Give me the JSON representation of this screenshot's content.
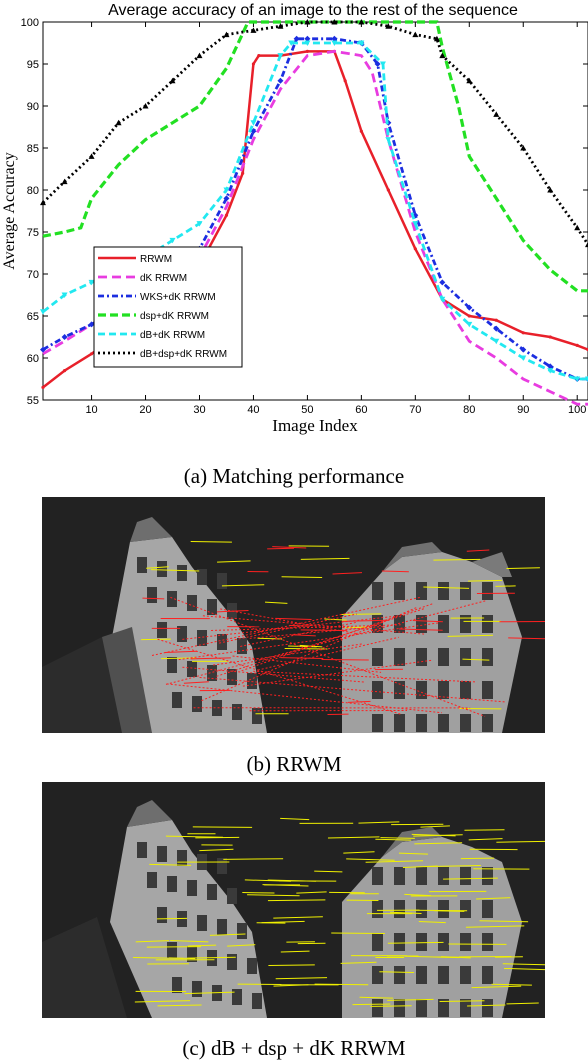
{
  "chart_data": {
    "type": "line",
    "title": "Average accuracy of an image to the rest of the sequence",
    "xlabel": "Image Index",
    "ylabel": "Average Accuracy",
    "xlim": [
      1,
      102
    ],
    "ylim": [
      55,
      100
    ],
    "xticks": [
      10,
      20,
      30,
      40,
      50,
      60,
      70,
      80,
      90,
      100
    ],
    "yticks": [
      55,
      60,
      65,
      70,
      75,
      80,
      85,
      90,
      95,
      100
    ],
    "legend_position": "lower-left",
    "series": [
      {
        "name": "RRWM",
        "color": "#e8202a",
        "x": [
          1,
          5,
          10,
          15,
          20,
          25,
          30,
          35,
          38,
          40,
          41,
          45,
          50,
          55,
          57,
          60,
          65,
          70,
          75,
          80,
          85,
          90,
          95,
          100,
          102
        ],
        "y": [
          56.5,
          58.5,
          60.5,
          63,
          66,
          69,
          71,
          77,
          82,
          95,
          96,
          96,
          96.5,
          96.5,
          93,
          87,
          80,
          73,
          67,
          65,
          64.5,
          63,
          62.5,
          61.5,
          61
        ]
      },
      {
        "name": "dK RRWM",
        "color": "#e83ce0",
        "x": [
          1,
          5,
          10,
          15,
          20,
          25,
          30,
          35,
          40,
          45,
          50,
          55,
          60,
          62,
          65,
          70,
          75,
          80,
          85,
          90,
          95,
          100,
          102
        ],
        "y": [
          60.5,
          62,
          64,
          65.5,
          68,
          70,
          72,
          78,
          86,
          92,
          96,
          96.5,
          96,
          94,
          86,
          75,
          67,
          62,
          60,
          57.5,
          56,
          54.5,
          54.5
        ]
      },
      {
        "name": "WKS+dK RRWM",
        "color": "#1c2ee0",
        "x": [
          1,
          5,
          10,
          15,
          20,
          25,
          30,
          35,
          40,
          45,
          48,
          50,
          55,
          60,
          63,
          65,
          70,
          75,
          80,
          85,
          90,
          95,
          100,
          102
        ],
        "y": [
          61,
          62.5,
          64,
          66,
          68.5,
          71,
          73,
          79,
          87,
          93,
          98,
          98,
          98,
          97.5,
          95,
          88,
          77,
          69,
          66,
          63.5,
          61,
          59,
          57.5,
          57.5
        ]
      },
      {
        "name": "dsp+dK RRWM",
        "color": "#22e022",
        "x": [
          1,
          5,
          8,
          10,
          15,
          20,
          25,
          30,
          35,
          39,
          40,
          45,
          50,
          55,
          60,
          65,
          70,
          74,
          75,
          78,
          80,
          85,
          90,
          95,
          100,
          102
        ],
        "y": [
          74.5,
          75,
          75.5,
          79,
          83,
          86,
          88,
          90,
          94.5,
          100,
          100,
          100,
          100,
          100,
          100,
          100,
          100,
          100,
          97,
          90,
          84,
          79,
          74,
          70.5,
          68,
          68
        ]
      },
      {
        "name": "dB+dK RRWM",
        "color": "#22e8f0",
        "x": [
          1,
          5,
          10,
          15,
          20,
          25,
          30,
          35,
          40,
          45,
          47,
          50,
          55,
          60,
          64,
          65,
          70,
          75,
          80,
          85,
          90,
          95,
          100,
          102
        ],
        "y": [
          65.5,
          67.5,
          69,
          70,
          72,
          74,
          76,
          80,
          88,
          96,
          97.5,
          97.5,
          97.5,
          97.5,
          95,
          86,
          76,
          67,
          64,
          62,
          60,
          58.5,
          57.5,
          57.5
        ]
      },
      {
        "name": "dB+dsp+dK RRWM",
        "color": "#000000",
        "x": [
          1,
          5,
          10,
          15,
          20,
          25,
          30,
          35,
          40,
          45,
          50,
          55,
          60,
          65,
          70,
          74,
          75,
          80,
          85,
          90,
          95,
          100,
          102
        ],
        "y": [
          78.5,
          81,
          84,
          88,
          90,
          93,
          96,
          98.5,
          99,
          99.5,
          100,
          100,
          100,
          99.5,
          98.5,
          98,
          96,
          93,
          89,
          85,
          80,
          75.5,
          73.5
        ]
      }
    ]
  },
  "captions": {
    "a": "(a) Matching performance",
    "b": "(b) RRWM",
    "c": "(c) dB + dsp + dK RRWM"
  },
  "colors": {
    "photo_bg": "#202020",
    "building": "#a8a8a8",
    "match_yellow": "#f0f000",
    "match_red": "#ff2020"
  }
}
